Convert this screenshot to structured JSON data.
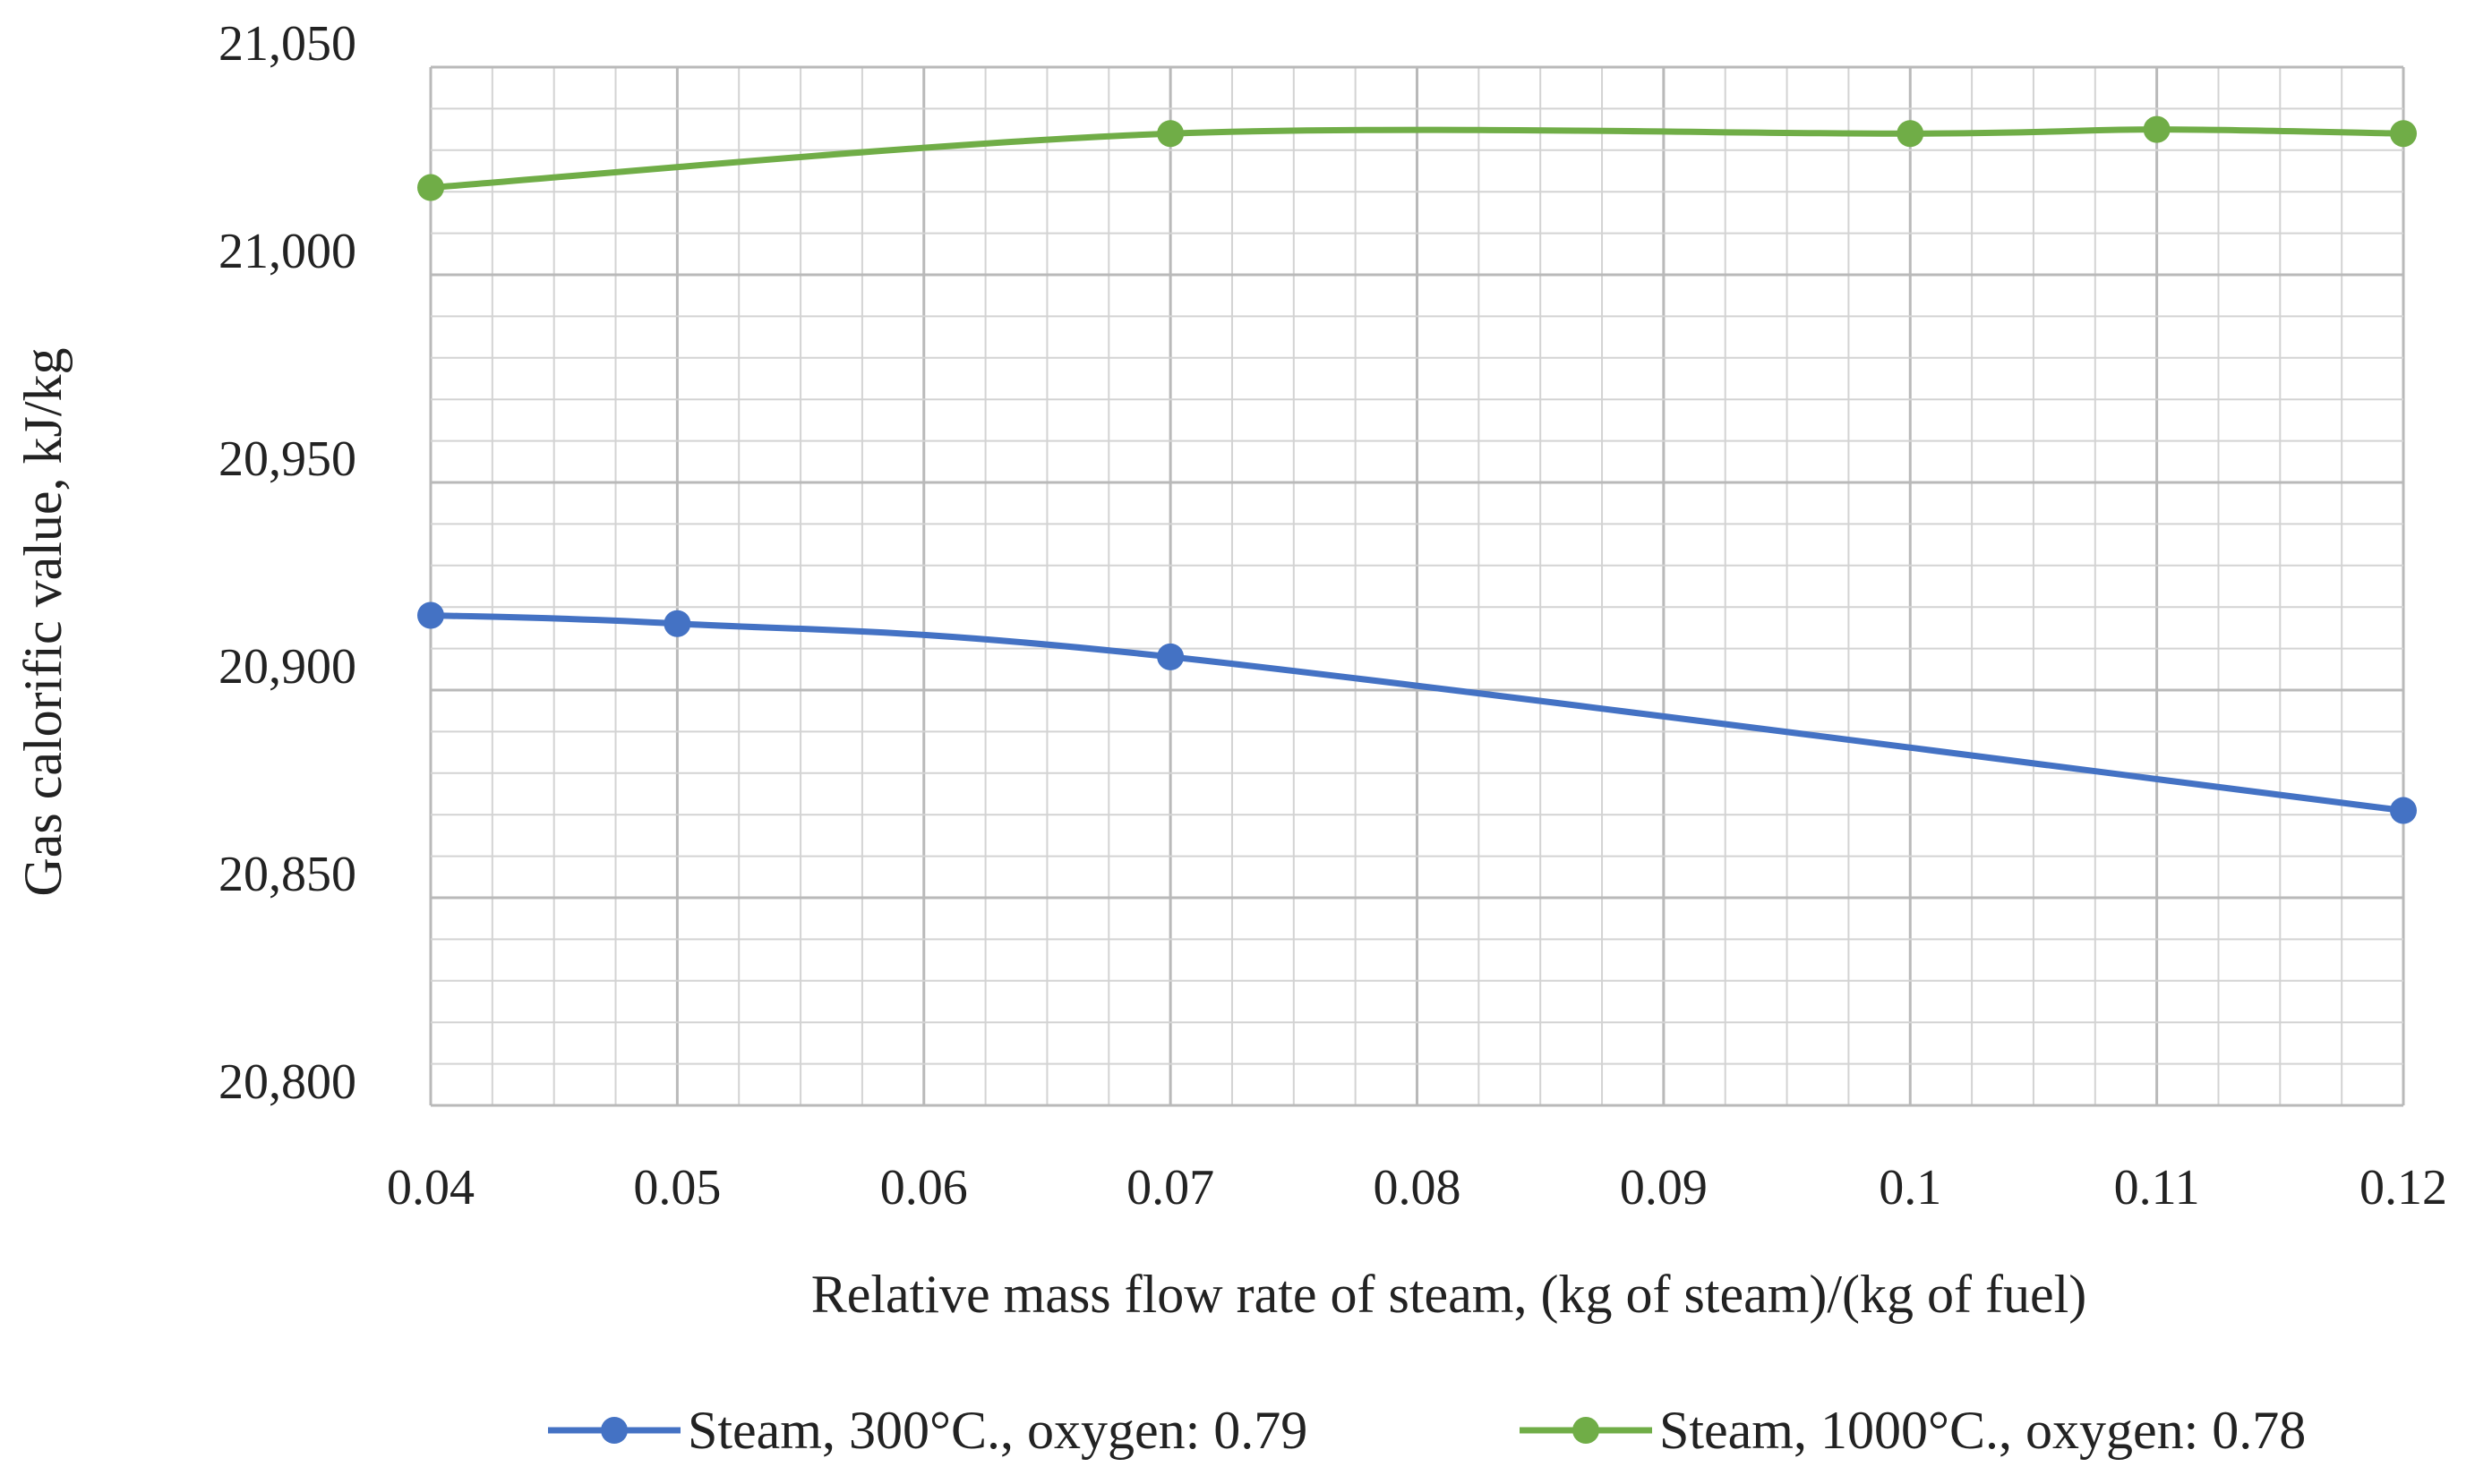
{
  "chart_data": {
    "type": "line",
    "title": "",
    "xlabel": "Relative mass flow rate of steam, (kg of steam)/(kg of fuel)",
    "ylabel": "Gas calorific value, kJ/kg",
    "xlim": [
      0.04,
      0.12
    ],
    "ylim": [
      20800,
      21050
    ],
    "x_ticks": [
      "0.04",
      "0.05",
      "0.06",
      "0.07",
      "0.08",
      "0.09",
      "0.1",
      "0.11",
      "0.12"
    ],
    "y_ticks": [
      "20,800",
      "20,850",
      "20,900",
      "20,950",
      "21,000",
      "21,050"
    ],
    "x_tick_values": [
      0.04,
      0.05,
      0.06,
      0.07,
      0.08,
      0.09,
      0.1,
      0.11,
      0.12
    ],
    "y_tick_values": [
      20800,
      20850,
      20900,
      20950,
      21000,
      21050
    ],
    "grid": true,
    "legend_position": "bottom",
    "series": [
      {
        "name": "Steam, 300°C., oxygen: 0.79",
        "color": "#4472C4",
        "x": [
          0.04,
          0.05,
          0.07,
          0.12
        ],
        "values": [
          20918,
          20916,
          20908,
          20871
        ]
      },
      {
        "name": "Steam, 1000°C., oxygen: 0.78",
        "color": "#70AD47",
        "x": [
          0.04,
          0.07,
          0.1,
          0.11,
          0.12
        ],
        "values": [
          21021,
          21034,
          21034,
          21035,
          21034
        ]
      }
    ]
  }
}
